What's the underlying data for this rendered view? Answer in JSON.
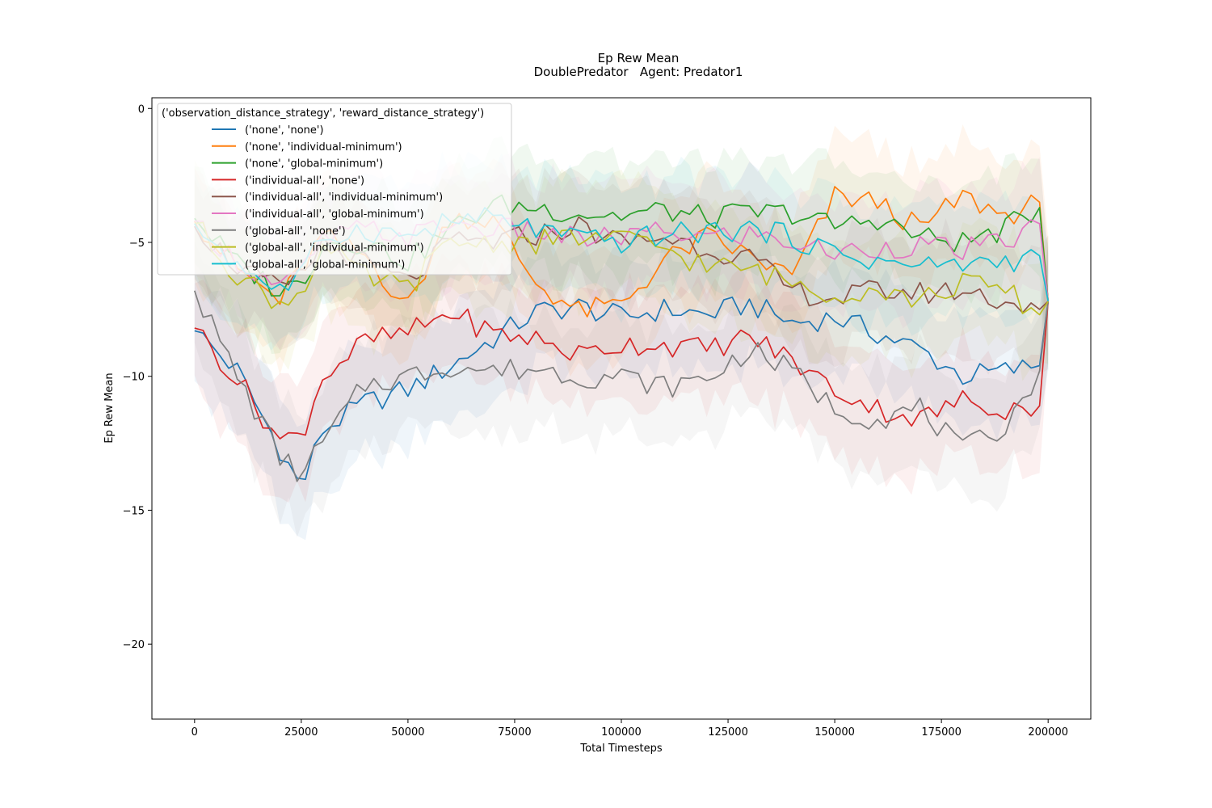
{
  "chart_data": {
    "type": "line",
    "title": "Ep Rew Mean",
    "subtitle": "DoublePredator   Agent: Predator1",
    "xlabel": "Total Timesteps",
    "ylabel": "Ep Rew Mean",
    "xlim": [
      -10000,
      210000
    ],
    "ylim": [
      -22.8,
      0.4
    ],
    "x_ticks": [
      0,
      25000,
      50000,
      75000,
      100000,
      125000,
      150000,
      175000,
      200000
    ],
    "x_tick_labels": [
      "0",
      "25000",
      "50000",
      "75000",
      "100000",
      "125000",
      "150000",
      "175000",
      "200000"
    ],
    "y_ticks": [
      0,
      -5,
      -10,
      -15,
      -20
    ],
    "y_tick_labels": [
      "0",
      "−5",
      "−10",
      "−15",
      "−20"
    ],
    "grid": false,
    "legend": {
      "title": "('observation_distance_strategy', 'reward_distance_strategy')",
      "position": "top-left"
    },
    "x": [
      0,
      10000,
      20000,
      25000,
      30000,
      40000,
      50000,
      60000,
      70000,
      80000,
      90000,
      100000,
      110000,
      120000,
      130000,
      140000,
      150000,
      160000,
      170000,
      180000,
      190000,
      198000,
      200000
    ],
    "series": [
      {
        "name": "('none', 'none')",
        "color": "#1f77b4",
        "values": [
          -8.3,
          -9.8,
          -12.7,
          -14.2,
          -12.0,
          -11.0,
          -10.5,
          -9.6,
          -8.6,
          -7.6,
          -7.4,
          -7.8,
          -7.5,
          -7.7,
          -7.3,
          -8.0,
          -7.8,
          -8.4,
          -9.0,
          -10.0,
          -9.8,
          -9.6,
          -7.2
        ]
      },
      {
        "name": "('none', 'individual-minimum')",
        "color": "#ff7f0e",
        "values": [
          -4.2,
          -6.0,
          -7.2,
          -6.0,
          -4.8,
          -5.5,
          -7.4,
          -4.0,
          -4.2,
          -6.5,
          -7.6,
          -7.3,
          -5.7,
          -4.8,
          -5.5,
          -6.3,
          -3.3,
          -3.5,
          -4.5,
          -3.3,
          -4.0,
          -3.5,
          -7.2
        ]
      },
      {
        "name": "('none', 'global-minimum')",
        "color": "#2ca02c",
        "values": [
          -4.1,
          -5.8,
          -6.8,
          -6.5,
          -5.0,
          -5.0,
          -5.7,
          -4.5,
          -3.6,
          -3.7,
          -3.9,
          -4.0,
          -3.8,
          -4.1,
          -3.9,
          -3.9,
          -4.4,
          -4.1,
          -4.8,
          -5.0,
          -4.5,
          -3.7,
          -7.2
        ]
      },
      {
        "name": "('individual-all', 'none')",
        "color": "#d62728",
        "values": [
          -8.2,
          -10.1,
          -12.4,
          -12.2,
          -10.0,
          -8.7,
          -8.4,
          -7.6,
          -8.4,
          -8.6,
          -9.2,
          -8.8,
          -8.8,
          -9.0,
          -8.5,
          -9.4,
          -10.5,
          -11.2,
          -11.6,
          -10.9,
          -11.2,
          -11.1,
          -7.2
        ]
      },
      {
        "name": "('individual-all', 'individual-minimum')",
        "color": "#8c564b",
        "values": [
          -4.4,
          -5.9,
          -6.8,
          -6.3,
          -5.0,
          -5.8,
          -6.5,
          -5.0,
          -5.0,
          -4.7,
          -4.4,
          -5.0,
          -4.8,
          -5.2,
          -5.6,
          -6.8,
          -7.1,
          -6.8,
          -6.9,
          -6.8,
          -7.2,
          -7.5,
          -7.2
        ]
      },
      {
        "name": "('individual-all', 'global-minimum')",
        "color": "#e377c2",
        "values": [
          -4.2,
          -5.7,
          -6.7,
          -6.2,
          -4.9,
          -4.5,
          -4.8,
          -4.3,
          -4.5,
          -4.6,
          -4.9,
          -4.8,
          -4.6,
          -4.8,
          -4.7,
          -5.0,
          -5.4,
          -5.2,
          -5.1,
          -5.3,
          -5.0,
          -4.3,
          -7.2
        ]
      },
      {
        "name": "('global-all', 'none')",
        "color": "#7f7f7f",
        "values": [
          -6.8,
          -10.0,
          -13.0,
          -13.7,
          -12.5,
          -10.3,
          -10.0,
          -9.6,
          -9.8,
          -9.7,
          -10.0,
          -10.0,
          -10.4,
          -10.1,
          -9.0,
          -9.8,
          -11.2,
          -11.6,
          -11.2,
          -12.8,
          -11.8,
          -9.8,
          -7.2
        ]
      },
      {
        "name": "('global-all', 'individual-minimum')",
        "color": "#bcbd22",
        "values": [
          -4.3,
          -6.2,
          -7.3,
          -6.8,
          -5.2,
          -6.3,
          -6.7,
          -5.0,
          -5.0,
          -5.0,
          -4.8,
          -4.9,
          -5.2,
          -5.9,
          -6.0,
          -6.5,
          -6.9,
          -6.7,
          -7.2,
          -6.5,
          -6.8,
          -7.7,
          -7.2
        ]
      },
      {
        "name": "('global-all', 'global-minimum')",
        "color": "#17becf",
        "values": [
          -4.3,
          -5.8,
          -6.8,
          -6.3,
          -4.8,
          -4.5,
          -4.8,
          -4.2,
          -4.1,
          -4.5,
          -4.9,
          -5.0,
          -4.7,
          -4.6,
          -4.5,
          -4.8,
          -5.4,
          -5.7,
          -5.9,
          -5.8,
          -5.7,
          -5.5,
          -7.2
        ]
      }
    ]
  }
}
